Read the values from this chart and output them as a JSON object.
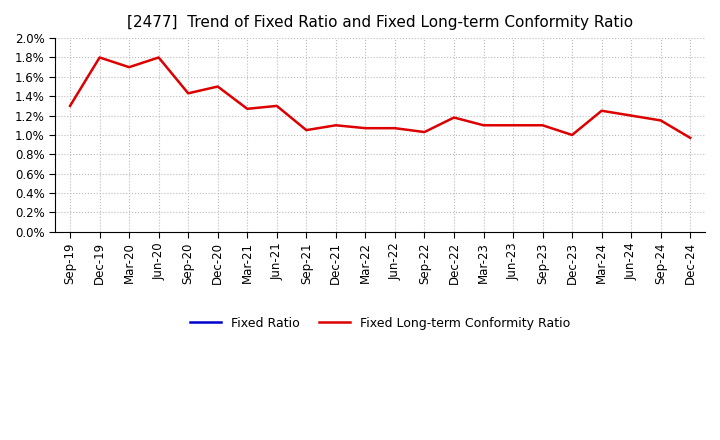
{
  "title": "[2477]  Trend of Fixed Ratio and Fixed Long-term Conformity Ratio",
  "x_labels": [
    "Sep-19",
    "Dec-19",
    "Mar-20",
    "Jun-20",
    "Sep-20",
    "Dec-20",
    "Mar-21",
    "Jun-21",
    "Sep-21",
    "Dec-21",
    "Mar-22",
    "Jun-22",
    "Sep-22",
    "Dec-22",
    "Mar-23",
    "Jun-23",
    "Sep-23",
    "Dec-23",
    "Mar-24",
    "Jun-24",
    "Sep-24",
    "Dec-24"
  ],
  "fixed_ratio": [
    null,
    null,
    null,
    null,
    null,
    null,
    null,
    null,
    null,
    null,
    null,
    null,
    null,
    null,
    null,
    null,
    null,
    null,
    null,
    null,
    null,
    null
  ],
  "fixed_lt_ratio": [
    0.013,
    0.018,
    0.017,
    0.018,
    0.0143,
    0.015,
    0.0127,
    0.013,
    0.0105,
    0.011,
    0.0107,
    0.0107,
    0.0103,
    0.0118,
    0.011,
    0.011,
    0.011,
    0.01,
    0.0125,
    0.012,
    0.0115,
    0.0097
  ],
  "fixed_ratio_color": "#0000cc",
  "fixed_lt_ratio_color": "#dd0000",
  "ylim_min": 0.0,
  "ylim_max": 0.02,
  "background_color": "#ffffff",
  "grid_color": "#bbbbbb",
  "title_fontsize": 11,
  "tick_fontsize": 8.5,
  "legend_fontsize": 9,
  "legend_labels": [
    "Fixed Ratio",
    "Fixed Long-term Conformity Ratio"
  ]
}
